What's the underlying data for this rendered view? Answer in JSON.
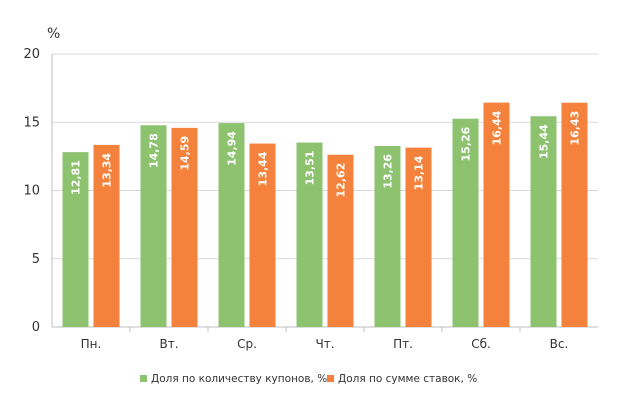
{
  "chart_data": {
    "type": "bar",
    "unit_label": "%",
    "categories": [
      "Пн.",
      "Вт.",
      "Ср.",
      "Чт.",
      "Пт.",
      "Сб.",
      "Вс."
    ],
    "ylim": [
      0,
      20
    ],
    "yticks": [
      0,
      5,
      10,
      15,
      20
    ],
    "ytick_labels": [
      "0",
      "5",
      "10",
      "15",
      "20"
    ],
    "grid": true,
    "legend_position": "bottom",
    "series": [
      {
        "name": "Доля по количеству купонов, %",
        "color": "#8dc26f",
        "values": [
          12.81,
          14.78,
          14.94,
          13.51,
          13.26,
          15.26,
          15.44
        ],
        "labels": [
          "12,81",
          "14,78",
          "14,94",
          "13,51",
          "13,26",
          "15,26",
          "15,44"
        ]
      },
      {
        "name": "Доля по сумме ставок, %",
        "color": "#f4823c",
        "values": [
          13.34,
          14.59,
          13.44,
          12.62,
          13.14,
          16.44,
          16.43
        ],
        "labels": [
          "13,34",
          "14,59",
          "13,44",
          "12,62",
          "13,14",
          "16,44",
          "16,43"
        ]
      }
    ]
  }
}
